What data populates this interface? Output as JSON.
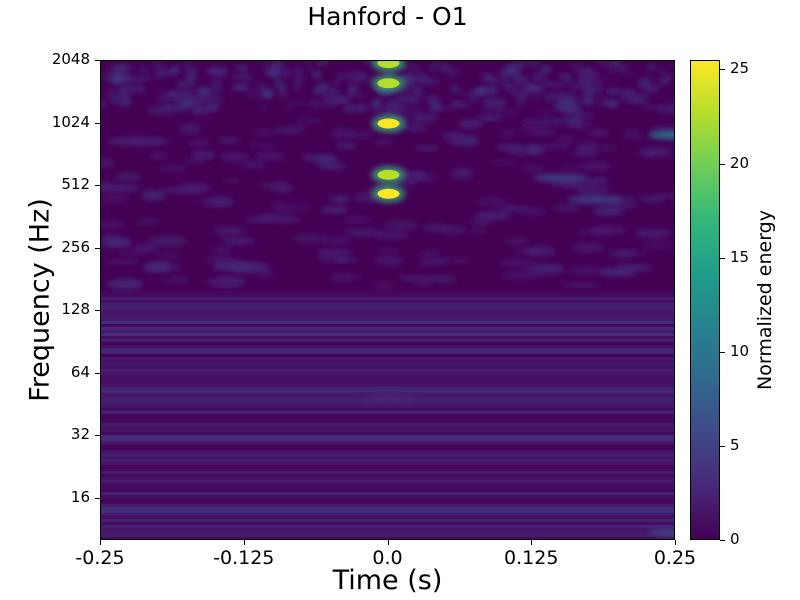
{
  "chart_data": {
    "type": "heatmap",
    "title": "Hanford - O1",
    "xlabel": "Time (s)",
    "ylabel": "Frequency (Hz)",
    "x_ticks": [
      "-0.25",
      "-0.125",
      "0.0",
      "0.125",
      "0.25"
    ],
    "x_tick_values": [
      -0.25,
      -0.125,
      0.0,
      0.125,
      0.25
    ],
    "y_ticks": [
      "16",
      "32",
      "64",
      "128",
      "256",
      "512",
      "1024",
      "2048"
    ],
    "y_tick_values": [
      16,
      32,
      64,
      128,
      256,
      512,
      1024,
      2048
    ],
    "xlim": [
      -0.25,
      0.25
    ],
    "ylim": [
      10,
      2048
    ],
    "y_scale": "log2",
    "colormap": "viridis",
    "colorbar": {
      "label": "Normalized energy",
      "ticks": [
        "0",
        "5",
        "10",
        "15",
        "20",
        "25"
      ],
      "tick_values": [
        0,
        5,
        10,
        15,
        20,
        25
      ],
      "range": [
        0,
        25.5
      ]
    },
    "hotspots": [
      {
        "time": 0.0,
        "frequency": 2000,
        "energy": 24
      },
      {
        "time": 0.0,
        "frequency": 1600,
        "energy": 22
      },
      {
        "time": 0.0,
        "frequency": 1024,
        "energy": 25.5
      },
      {
        "time": 0.0,
        "frequency": 580,
        "energy": 22
      },
      {
        "time": 0.0,
        "frequency": 470,
        "energy": 25
      },
      {
        "time": 0.25,
        "frequency": 900,
        "energy": 10
      },
      {
        "time": 0.18,
        "frequency": 440,
        "energy": 6
      },
      {
        "time": 0.15,
        "frequency": 560,
        "energy": 5
      },
      {
        "time": -0.24,
        "frequency": 500,
        "energy": 4
      },
      {
        "time": -0.22,
        "frequency": 840,
        "energy": 4
      },
      {
        "time": -0.13,
        "frequency": 210,
        "energy": 4
      },
      {
        "time": 0.0,
        "frequency": 48,
        "energy": 4
      },
      {
        "time": 0.25,
        "frequency": 11,
        "energy": 6
      }
    ]
  }
}
